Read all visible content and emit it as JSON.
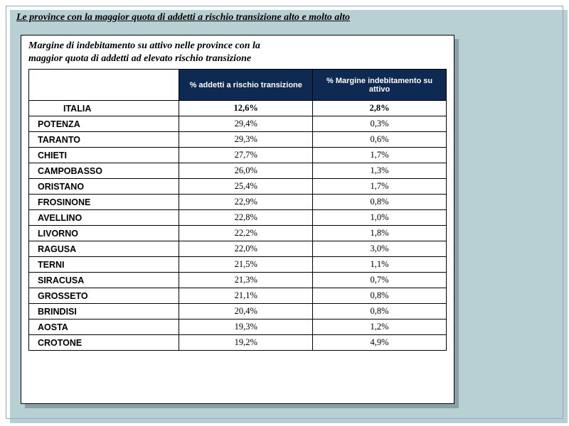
{
  "main_title": "Le province con la maggior quota di addetti a rischio transizione alto e molto alto",
  "panel_title_line1": "Margine di indebitamento su attivo nelle province con la",
  "panel_title_line2": "maggior quota di addetti ad elevato rischio transizione",
  "table": {
    "header_bg": "#0f2a52",
    "columns": [
      "",
      "% addetti a rischio transizione",
      "% Margine indebitamento su attivo"
    ],
    "rows": [
      {
        "province": "ITALIA",
        "v1": "12,6%",
        "v2": "2,8%",
        "bold": true
      },
      {
        "province": "POTENZA",
        "v1": "29,4%",
        "v2": "0,3%",
        "bold": false
      },
      {
        "province": "TARANTO",
        "v1": "29,3%",
        "v2": "0,6%",
        "bold": false
      },
      {
        "province": "CHIETI",
        "v1": "27,7%",
        "v2": "1,7%",
        "bold": false
      },
      {
        "province": "CAMPOBASSO",
        "v1": "26,0%",
        "v2": "1,3%",
        "bold": false
      },
      {
        "province": "ORISTANO",
        "v1": "25,4%",
        "v2": "1,7%",
        "bold": false
      },
      {
        "province": "FROSINONE",
        "v1": "22,9%",
        "v2": "0,8%",
        "bold": false
      },
      {
        "province": "AVELLINO",
        "v1": "22,8%",
        "v2": "1,0%",
        "bold": false
      },
      {
        "province": "LIVORNO",
        "v1": "22,2%",
        "v2": "1,8%",
        "bold": false
      },
      {
        "province": "RAGUSA",
        "v1": "22,0%",
        "v2": "3,0%",
        "bold": false
      },
      {
        "province": "TERNI",
        "v1": "21,5%",
        "v2": "1,1%",
        "bold": false
      },
      {
        "province": "SIRACUSA",
        "v1": "21,3%",
        "v2": "0,7%",
        "bold": false
      },
      {
        "province": "GROSSETO",
        "v1": "21,1%",
        "v2": "0,8%",
        "bold": false
      },
      {
        "province": "BRINDISI",
        "v1": "20,4%",
        "v2": "0,8%",
        "bold": false
      },
      {
        "province": "AOSTA",
        "v1": "19,3%",
        "v2": "1,2%",
        "bold": false
      },
      {
        "province": "CROTONE",
        "v1": "19,2%",
        "v2": "4,9%",
        "bold": false
      }
    ]
  }
}
